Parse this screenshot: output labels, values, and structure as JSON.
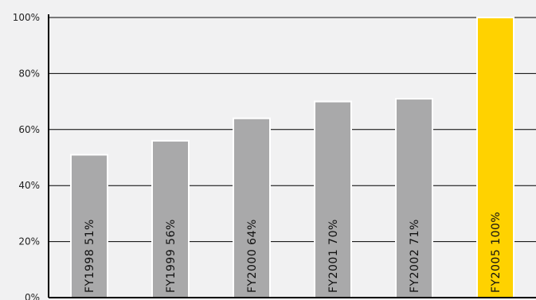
{
  "chart_data": {
    "type": "bar",
    "categories": [
      "FY1998",
      "FY1999",
      "FY2000",
      "FY2001",
      "FY2002",
      "FY2005"
    ],
    "values": [
      51,
      56,
      64,
      70,
      71,
      100
    ],
    "bar_labels": [
      "FY1998  51%",
      "FY1999  56%",
      "FY2000  64%",
      "FY2001  70%",
      "FY2002 71%",
      "FY2005  100%"
    ],
    "yticks": [
      "0%",
      "20%",
      "40%",
      "60%",
      "80%",
      "100%"
    ],
    "ylim": [
      0,
      100
    ],
    "grid": true,
    "colors": {
      "bar": "#a9a9aa",
      "highlight": "#ffd200",
      "highlight_index": 5,
      "grid": "#000000",
      "background": "#f1f1f2"
    }
  }
}
